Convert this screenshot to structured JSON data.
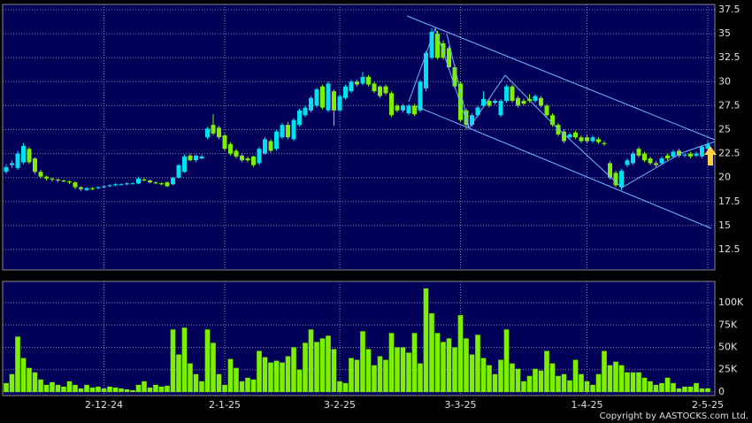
{
  "chart_data": [
    {
      "type": "candlestick",
      "up_color": "#00e0f0",
      "down_color": "#7cf000",
      "ylim": [
        10.38,
        38.05
      ],
      "yticks": [
        12.5,
        15,
        17.5,
        20,
        22.5,
        25,
        27.5,
        30,
        32.5,
        35,
        37.5
      ],
      "grid": true,
      "candles": [
        [
          20.6,
          21.4,
          20.4,
          21.1
        ],
        [
          21.3,
          21.8,
          21.0,
          21.5
        ],
        [
          21.0,
          22.8,
          20.8,
          22.5
        ],
        [
          21.6,
          23.6,
          21.4,
          23.3
        ],
        [
          23.0,
          23.2,
          21.4,
          21.6
        ],
        [
          22.0,
          22.1,
          20.4,
          20.6
        ],
        [
          20.6,
          20.8,
          19.9,
          20.1
        ],
        [
          20.1,
          20.2,
          19.7,
          19.9
        ],
        [
          19.9,
          20.0,
          19.6,
          19.8
        ],
        [
          19.8,
          19.9,
          19.5,
          19.7
        ],
        [
          19.7,
          19.8,
          19.5,
          19.6
        ],
        [
          19.6,
          19.7,
          19.3,
          19.5
        ],
        [
          19.5,
          19.6,
          18.8,
          19.0
        ],
        [
          19.0,
          19.1,
          18.6,
          18.8
        ],
        [
          18.7,
          19.0,
          18.6,
          18.9
        ],
        [
          18.9,
          19.0,
          18.7,
          18.8
        ],
        [
          18.9,
          19.1,
          18.8,
          19.0
        ],
        [
          19.0,
          19.2,
          18.9,
          19.1
        ],
        [
          19.1,
          19.3,
          19.0,
          19.2
        ],
        [
          19.2,
          19.4,
          19.1,
          19.3
        ],
        [
          19.3,
          19.4,
          19.2,
          19.3
        ],
        [
          19.3,
          19.5,
          19.2,
          19.4
        ],
        [
          19.4,
          19.5,
          19.3,
          19.4
        ],
        [
          19.4,
          20.1,
          19.3,
          19.9
        ],
        [
          19.8,
          20.0,
          19.6,
          19.7
        ],
        [
          19.7,
          19.8,
          19.4,
          19.5
        ],
        [
          19.5,
          19.6,
          19.3,
          19.4
        ],
        [
          19.4,
          19.5,
          19.2,
          19.3
        ],
        [
          19.5,
          19.6,
          19.0,
          19.1
        ],
        [
          19.3,
          20.1,
          19.2,
          20.0
        ],
        [
          20.0,
          21.4,
          19.9,
          21.3
        ],
        [
          20.6,
          22.4,
          20.5,
          22.2
        ],
        [
          22.3,
          22.5,
          21.7,
          21.8
        ],
        [
          21.8,
          22.4,
          21.6,
          22.3
        ],
        [
          22.0,
          22.4,
          21.9,
          22.2
        ],
        [
          24.2,
          25.3,
          24.0,
          25.1
        ],
        [
          25.5,
          26.6,
          24.4,
          24.6
        ],
        [
          25.2,
          25.4,
          24.0,
          24.2
        ],
        [
          24.4,
          24.6,
          22.8,
          23.0
        ],
        [
          23.5,
          23.7,
          22.3,
          22.5
        ],
        [
          22.8,
          23.0,
          22.0,
          22.2
        ],
        [
          22.3,
          22.5,
          21.6,
          21.8
        ],
        [
          22.0,
          22.2,
          21.6,
          21.8
        ],
        [
          22.2,
          22.3,
          21.1,
          21.3
        ],
        [
          21.5,
          23.2,
          21.3,
          23.0
        ],
        [
          22.5,
          24.2,
          22.4,
          24.0
        ],
        [
          23.8,
          24.0,
          22.6,
          22.8
        ],
        [
          23.0,
          25.0,
          22.8,
          24.8
        ],
        [
          24.2,
          25.7,
          24.0,
          25.5
        ],
        [
          25.5,
          25.8,
          24.0,
          24.2
        ],
        [
          24.0,
          26.2,
          23.8,
          26.0
        ],
        [
          25.5,
          27.2,
          25.3,
          27.0
        ],
        [
          26.5,
          27.5,
          26.3,
          27.3
        ],
        [
          27.0,
          28.5,
          26.8,
          28.3
        ],
        [
          27.5,
          29.4,
          27.3,
          29.2
        ],
        [
          29.5,
          29.7,
          27.1,
          27.3
        ],
        [
          27.0,
          30.0,
          26.8,
          29.8
        ],
        [
          29.0,
          29.2,
          25.4,
          27.0
        ],
        [
          27.0,
          28.7,
          26.8,
          28.5
        ],
        [
          28.3,
          29.7,
          28.1,
          29.5
        ],
        [
          29.0,
          30.2,
          28.8,
          30.0
        ],
        [
          30.0,
          30.2,
          29.5,
          29.7
        ],
        [
          29.8,
          31.0,
          29.6,
          30.5
        ],
        [
          30.5,
          30.7,
          29.5,
          29.7
        ],
        [
          29.8,
          30.0,
          28.8,
          29.0
        ],
        [
          29.5,
          29.6,
          28.3,
          28.5
        ],
        [
          29.5,
          29.7,
          28.6,
          28.8
        ],
        [
          28.8,
          29.0,
          26.3,
          26.5
        ],
        [
          27.5,
          27.7,
          26.8,
          27.0
        ],
        [
          27.0,
          27.7,
          26.8,
          27.5
        ],
        [
          26.7,
          27.7,
          26.5,
          27.5
        ],
        [
          27.5,
          27.7,
          26.4,
          26.6
        ],
        [
          27.0,
          30.2,
          26.8,
          30.0
        ],
        [
          29.3,
          33.2,
          29.0,
          33.0
        ],
        [
          32.5,
          35.6,
          32.3,
          35.2
        ],
        [
          35.0,
          35.3,
          32.3,
          32.5
        ],
        [
          34.0,
          34.3,
          32.3,
          32.5
        ],
        [
          33.5,
          33.7,
          31.3,
          31.5
        ],
        [
          31.5,
          31.8,
          29.3,
          29.5
        ],
        [
          29.8,
          30.0,
          25.8,
          26.0
        ],
        [
          27.0,
          27.2,
          25.0,
          25.5
        ],
        [
          25.5,
          26.7,
          25.3,
          26.5
        ],
        [
          26.5,
          27.5,
          26.3,
          27.3
        ],
        [
          27.5,
          29.0,
          27.3,
          28.2
        ],
        [
          28.0,
          28.2,
          27.3,
          27.5
        ],
        [
          27.8,
          28.2,
          27.6,
          28.0
        ],
        [
          26.5,
          28.2,
          26.3,
          28.0
        ],
        [
          28.0,
          29.7,
          27.8,
          29.5
        ],
        [
          29.5,
          29.7,
          27.8,
          28.0
        ],
        [
          28.3,
          28.5,
          27.3,
          27.5
        ],
        [
          28.0,
          28.2,
          27.5,
          27.7
        ],
        [
          28.2,
          28.7,
          27.8,
          28.0
        ],
        [
          28.0,
          28.7,
          27.8,
          28.5
        ],
        [
          28.3,
          28.5,
          27.3,
          27.5
        ],
        [
          27.5,
          27.7,
          26.3,
          26.5
        ],
        [
          26.5,
          26.7,
          25.3,
          25.5
        ],
        [
          25.5,
          25.7,
          24.3,
          24.5
        ],
        [
          24.8,
          25.0,
          23.6,
          23.8
        ],
        [
          24.2,
          24.7,
          24.0,
          24.5
        ],
        [
          24.7,
          24.9,
          24.0,
          24.2
        ],
        [
          24.2,
          24.4,
          23.6,
          23.8
        ],
        [
          24.2,
          24.4,
          23.6,
          23.8
        ],
        [
          23.8,
          24.4,
          23.6,
          24.2
        ],
        [
          24.0,
          24.2,
          23.5,
          23.7
        ],
        [
          23.6,
          23.8,
          23.3,
          23.5
        ],
        [
          21.5,
          21.7,
          19.8,
          20.0
        ],
        [
          20.5,
          20.7,
          19.0,
          19.2
        ],
        [
          19.0,
          20.9,
          18.7,
          20.7
        ],
        [
          21.3,
          22.0,
          21.1,
          21.8
        ],
        [
          21.5,
          22.7,
          21.3,
          22.5
        ],
        [
          23.0,
          23.2,
          22.1,
          22.3
        ],
        [
          22.5,
          22.7,
          21.6,
          21.8
        ],
        [
          22.0,
          22.2,
          21.3,
          21.5
        ],
        [
          21.5,
          21.7,
          21.1,
          21.3
        ],
        [
          21.5,
          22.2,
          21.3,
          22.0
        ],
        [
          22.3,
          22.5,
          21.8,
          22.0
        ],
        [
          22.2,
          22.9,
          22.0,
          22.7
        ],
        [
          22.8,
          23.0,
          22.1,
          22.3
        ],
        [
          22.3,
          22.5,
          22.1,
          22.4
        ],
        [
          22.5,
          22.7,
          22.0,
          22.2
        ],
        [
          22.3,
          22.7,
          22.1,
          22.5
        ],
        [
          22.2,
          23.4,
          22.0,
          23.2
        ],
        [
          23.0,
          23.8,
          22.8,
          23.5
        ]
      ]
    },
    {
      "type": "bar",
      "color": "#7cf000",
      "ylim": [
        -4000,
        123800
      ],
      "yticks": [
        0,
        {
          "value": 25000,
          "label": "25K"
        },
        {
          "value": 50000,
          "label": "50K"
        },
        {
          "value": 75000,
          "label": "75K"
        },
        {
          "value": 100000,
          "label": "100K"
        }
      ],
      "grid": true,
      "categories": [
        null,
        null,
        null,
        null,
        null,
        null,
        null,
        null,
        null,
        null,
        null,
        null,
        null,
        null,
        null,
        null,
        null,
        "2-12-24",
        null,
        null,
        null,
        null,
        null,
        null,
        null,
        null,
        null,
        null,
        null,
        null,
        null,
        null,
        null,
        null,
        null,
        null,
        null,
        null,
        "2-1-25",
        null,
        null,
        null,
        null,
        null,
        null,
        null,
        null,
        null,
        null,
        null,
        null,
        null,
        null,
        null,
        null,
        null,
        null,
        null,
        "3-2-25",
        null,
        null,
        null,
        null,
        null,
        null,
        null,
        null,
        null,
        null,
        null,
        null,
        null,
        null,
        null,
        null,
        null,
        null,
        null,
        null,
        "3-3-25",
        null,
        null,
        null,
        null,
        null,
        null,
        null,
        null,
        null,
        null,
        null,
        null,
        null,
        null,
        null,
        null,
        null,
        null,
        null,
        null,
        null,
        "1-4-25",
        null,
        null,
        null,
        null,
        null,
        null,
        null,
        null,
        null,
        null,
        null,
        null,
        null,
        null,
        null,
        null,
        null,
        null,
        null,
        null,
        "2-5-25"
      ],
      "values": [
        10000,
        20000,
        62000,
        38000,
        27000,
        22000,
        14000,
        8000,
        11000,
        8000,
        6000,
        12000,
        8000,
        4000,
        8000,
        5000,
        6000,
        4000,
        6000,
        5000,
        4000,
        3000,
        2000,
        8000,
        12000,
        5000,
        8000,
        6000,
        7000,
        70000,
        42000,
        72000,
        32000,
        20000,
        12000,
        70000,
        55000,
        20000,
        8000,
        37000,
        27000,
        12000,
        16000,
        14000,
        46000,
        39000,
        33000,
        35000,
        33000,
        40000,
        50000,
        25000,
        55000,
        70000,
        56000,
        60000,
        63000,
        48000,
        12000,
        10000,
        38000,
        36000,
        68000,
        48000,
        30000,
        40000,
        36000,
        66000,
        50000,
        50000,
        44000,
        66000,
        32000,
        116000,
        88000,
        66000,
        56000,
        60000,
        50000,
        86000,
        60000,
        42000,
        64000,
        38000,
        30000,
        20000,
        36000,
        70000,
        32000,
        26000,
        12000,
        18000,
        26000,
        24000,
        46000,
        32000,
        18000,
        20000,
        13000,
        36000,
        20000,
        12000,
        8000,
        20000,
        46000,
        30000,
        34000,
        30000,
        22000,
        22000,
        22000,
        16000,
        12000,
        8000,
        10000,
        16000,
        10000,
        4000,
        6000,
        6000,
        10000,
        4000,
        4000
      ]
    }
  ],
  "footer": {
    "copyright": "Copyright by AASTOCKS.com Ltd."
  }
}
